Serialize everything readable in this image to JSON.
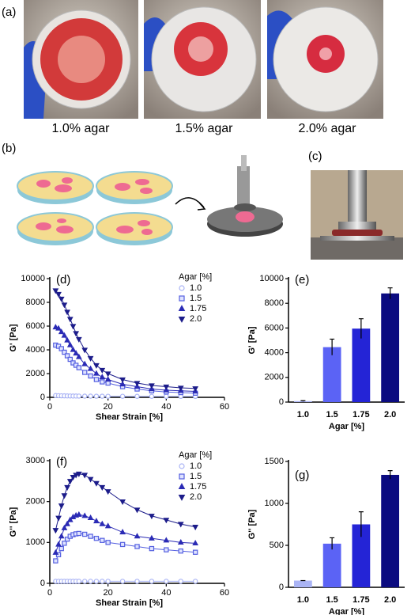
{
  "figure": {
    "panel_labels": {
      "a": "(a)",
      "b": "(b)",
      "c": "(c)"
    },
    "photo_captions": [
      "1.0% agar",
      "1.5% agar",
      "2.0% agar"
    ]
  },
  "chart_data": [
    {
      "type": "line",
      "title": "(d)",
      "x_label": "Shear Strain [%]",
      "y_label": "G' [Pa]",
      "legend_title": "Agar [%]",
      "xlim": [
        0,
        60
      ],
      "xticks": [
        0,
        20,
        40,
        60
      ],
      "ylim": [
        0,
        10000
      ],
      "yticks": [
        0,
        2000,
        4000,
        6000,
        8000,
        10000
      ],
      "x": [
        2,
        3,
        4,
        5,
        6,
        7,
        8,
        9,
        10,
        12,
        14,
        16,
        18,
        20,
        25,
        30,
        35,
        40,
        45,
        50
      ],
      "series": [
        {
          "name": "1.0",
          "color": "#aab4f5",
          "marker": "circle",
          "values": [
            150,
            140,
            130,
            125,
            120,
            115,
            110,
            110,
            105,
            100,
            100,
            95,
            95,
            90,
            90,
            85,
            85,
            80,
            80,
            80
          ]
        },
        {
          "name": "1.5",
          "color": "#5560e0",
          "marker": "square",
          "values": [
            4400,
            4300,
            4100,
            3800,
            3500,
            3200,
            2900,
            2700,
            2500,
            2100,
            1800,
            1500,
            1300,
            1200,
            900,
            700,
            550,
            450,
            400,
            350
          ]
        },
        {
          "name": "1.75",
          "color": "#2b2bb5",
          "marker": "triangle-up",
          "values": [
            5900,
            5800,
            5500,
            5200,
            4800,
            4400,
            4000,
            3700,
            3400,
            2800,
            2400,
            2000,
            1700,
            1500,
            1100,
            900,
            700,
            600,
            550,
            500
          ]
        },
        {
          "name": "2.0",
          "color": "#1c1c8a",
          "marker": "triangle-down",
          "values": [
            9000,
            8700,
            8300,
            7800,
            7200,
            6600,
            6000,
            5400,
            4900,
            4000,
            3300,
            2700,
            2300,
            2000,
            1500,
            1200,
            1000,
            900,
            800,
            750
          ]
        }
      ]
    },
    {
      "type": "bar",
      "title": "(e)",
      "x_label": "Agar [%]",
      "y_label": "G' [Pa]",
      "ylim": [
        0,
        10000
      ],
      "yticks": [
        0,
        2000,
        4000,
        6000,
        8000,
        10000
      ],
      "categories": [
        "1.0",
        "1.5",
        "1.75",
        "2.0"
      ],
      "values": [
        80,
        4450,
        5950,
        8800
      ],
      "errors": [
        30,
        650,
        800,
        450
      ],
      "colors": [
        "#aab4f5",
        "#5b63f5",
        "#2424d6",
        "#0b0b80"
      ]
    },
    {
      "type": "line",
      "title": "(f)",
      "x_label": "Shear Strain [%]",
      "y_label": "G'' [Pa]",
      "legend_title": "Agar [%]",
      "xlim": [
        0,
        60
      ],
      "xticks": [
        0,
        20,
        40,
        60
      ],
      "ylim": [
        0,
        3000
      ],
      "yticks": [
        0,
        1000,
        2000,
        3000
      ],
      "x": [
        2,
        3,
        4,
        5,
        6,
        7,
        8,
        9,
        10,
        12,
        14,
        16,
        18,
        20,
        25,
        30,
        35,
        40,
        45,
        50
      ],
      "series": [
        {
          "name": "1.0",
          "color": "#aab4f5",
          "marker": "circle",
          "values": [
            50,
            50,
            50,
            50,
            50,
            50,
            50,
            50,
            50,
            50,
            50,
            50,
            50,
            50,
            50,
            50,
            50,
            50,
            50,
            50
          ]
        },
        {
          "name": "1.5",
          "color": "#5560e0",
          "marker": "square",
          "values": [
            550,
            700,
            850,
            980,
            1080,
            1150,
            1190,
            1210,
            1220,
            1200,
            1150,
            1100,
            1050,
            1000,
            950,
            900,
            850,
            820,
            790,
            760
          ]
        },
        {
          "name": "1.75",
          "color": "#2b2bb5",
          "marker": "triangle-up",
          "values": [
            750,
            950,
            1150,
            1350,
            1450,
            1550,
            1620,
            1660,
            1680,
            1650,
            1600,
            1520,
            1450,
            1400,
            1250,
            1150,
            1100,
            1050,
            1000,
            980
          ]
        },
        {
          "name": "2.0",
          "color": "#1c1c8a",
          "marker": "triangle-down",
          "values": [
            1300,
            1600,
            1900,
            2150,
            2350,
            2500,
            2600,
            2650,
            2680,
            2650,
            2550,
            2450,
            2350,
            2250,
            2000,
            1800,
            1650,
            1550,
            1450,
            1380
          ]
        }
      ]
    },
    {
      "type": "bar",
      "title": "(g)",
      "x_label": "Agar [%]",
      "y_label": "G'' [Pa]",
      "ylim": [
        0,
        1500
      ],
      "yticks": [
        0,
        500,
        1000,
        1500
      ],
      "categories": [
        "1.0",
        "1.5",
        "1.75",
        "2.0"
      ],
      "values": [
        80,
        520,
        750,
        1340
      ],
      "errors": [
        0,
        70,
        150,
        50
      ],
      "colors": [
        "#aab4f5",
        "#5b63f5",
        "#2424d6",
        "#0b0b80"
      ]
    }
  ]
}
